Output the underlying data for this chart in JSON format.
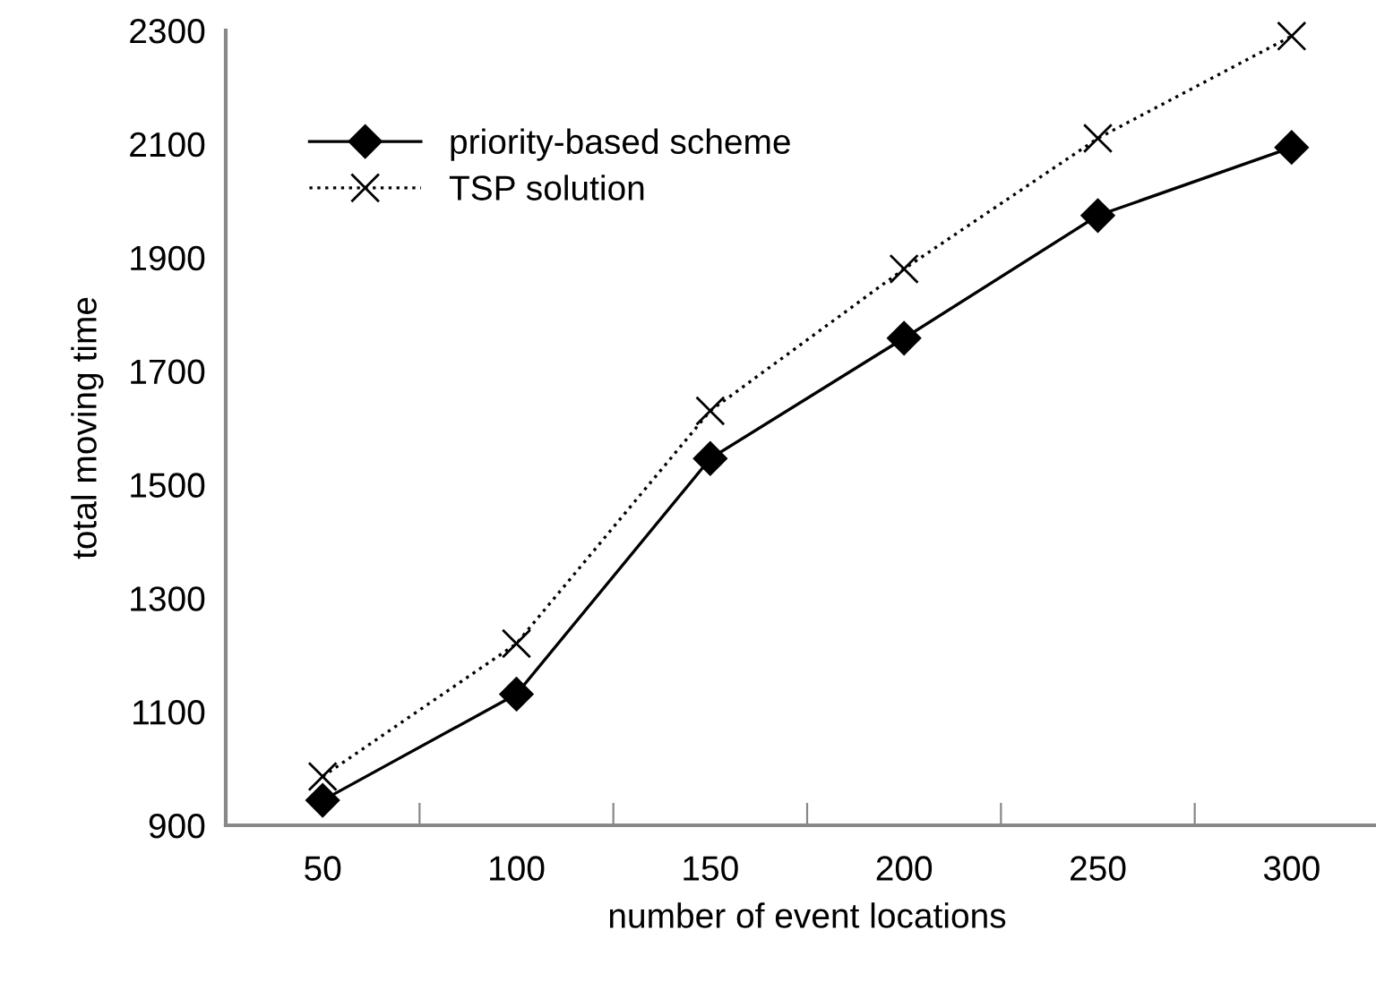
{
  "chart_data": {
    "type": "line",
    "xlabel": "number of event locations",
    "ylabel": "total moving time",
    "categories": [
      "50",
      "100",
      "150",
      "200",
      "250",
      "300"
    ],
    "series": [
      {
        "name": "priority-based scheme",
        "color": "#000000",
        "marker": "diamond",
        "line_style": "solid",
        "values": [
          944,
          1131,
          1546,
          1758,
          1974,
          2094
        ]
      },
      {
        "name": "TSP solution",
        "color": "#000000",
        "marker": "cross",
        "line_style": "dotted",
        "values": [
          986,
          1220,
          1630,
          1880,
          2110,
          2290
        ]
      }
    ],
    "ylim": [
      900,
      2300
    ],
    "yticks": [
      900,
      1100,
      1300,
      1500,
      1700,
      1900,
      2100,
      2300
    ],
    "grid": false,
    "legend": "top left"
  }
}
